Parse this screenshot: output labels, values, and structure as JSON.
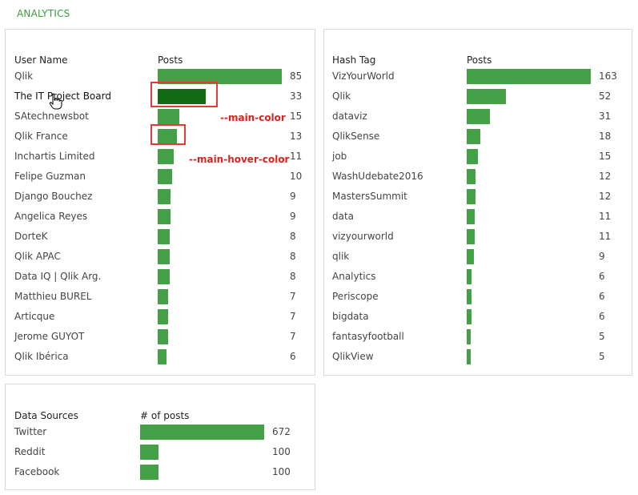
{
  "header": {
    "title": "ANALYTICS"
  },
  "colors": {
    "main": "#43a047",
    "hover": "#136b13",
    "highlight": "#e53935"
  },
  "annotations": {
    "main_color": "--main-color",
    "hover_color": "--main-hover-color"
  },
  "users": {
    "col_name": "User Name",
    "col_value": "Posts",
    "max": 85,
    "rows": [
      {
        "label": "Qlik",
        "value": 85
      },
      {
        "label": "The IT Project Board",
        "value": 33,
        "state": "hover"
      },
      {
        "label": "SAtechnewsbot",
        "value": 15
      },
      {
        "label": "Qlik France",
        "value": 13
      },
      {
        "label": "Inchartis Limited",
        "value": 11
      },
      {
        "label": "Felipe Guzman",
        "value": 10
      },
      {
        "label": "Django Bouchez",
        "value": 9
      },
      {
        "label": "Angelica Reyes",
        "value": 9
      },
      {
        "label": "DorteK",
        "value": 8
      },
      {
        "label": "Qlik APAC",
        "value": 8
      },
      {
        "label": "Data IQ | Qlik Arg.",
        "value": 8
      },
      {
        "label": "Matthieu BUREL",
        "value": 7
      },
      {
        "label": "Articque",
        "value": 7
      },
      {
        "label": "Jerome GUYOT",
        "value": 7
      },
      {
        "label": "Qlik Ibérica",
        "value": 6
      }
    ]
  },
  "hashtags": {
    "col_name": "Hash Tag",
    "col_value": "Posts",
    "max": 163,
    "rows": [
      {
        "label": "VizYourWorld",
        "value": 163
      },
      {
        "label": "Qlik",
        "value": 52
      },
      {
        "label": "dataviz",
        "value": 31
      },
      {
        "label": "QlikSense",
        "value": 18
      },
      {
        "label": "job",
        "value": 15
      },
      {
        "label": "WashUdebate2016",
        "value": 12
      },
      {
        "label": "MastersSummit",
        "value": 12
      },
      {
        "label": "data",
        "value": 11
      },
      {
        "label": "vizyourworld",
        "value": 11
      },
      {
        "label": "qlik",
        "value": 9
      },
      {
        "label": "Analytics",
        "value": 6
      },
      {
        "label": "Periscope",
        "value": 6
      },
      {
        "label": "bigdata",
        "value": 6
      },
      {
        "label": "fantasyfootball",
        "value": 5
      },
      {
        "label": "QlikView",
        "value": 5
      }
    ]
  },
  "sources": {
    "col_name": "Data Sources",
    "col_value": "# of posts",
    "max": 672,
    "rows": [
      {
        "label": "Twitter",
        "value": 672
      },
      {
        "label": "Reddit",
        "value": 100
      },
      {
        "label": "Facebook",
        "value": 100
      }
    ]
  }
}
